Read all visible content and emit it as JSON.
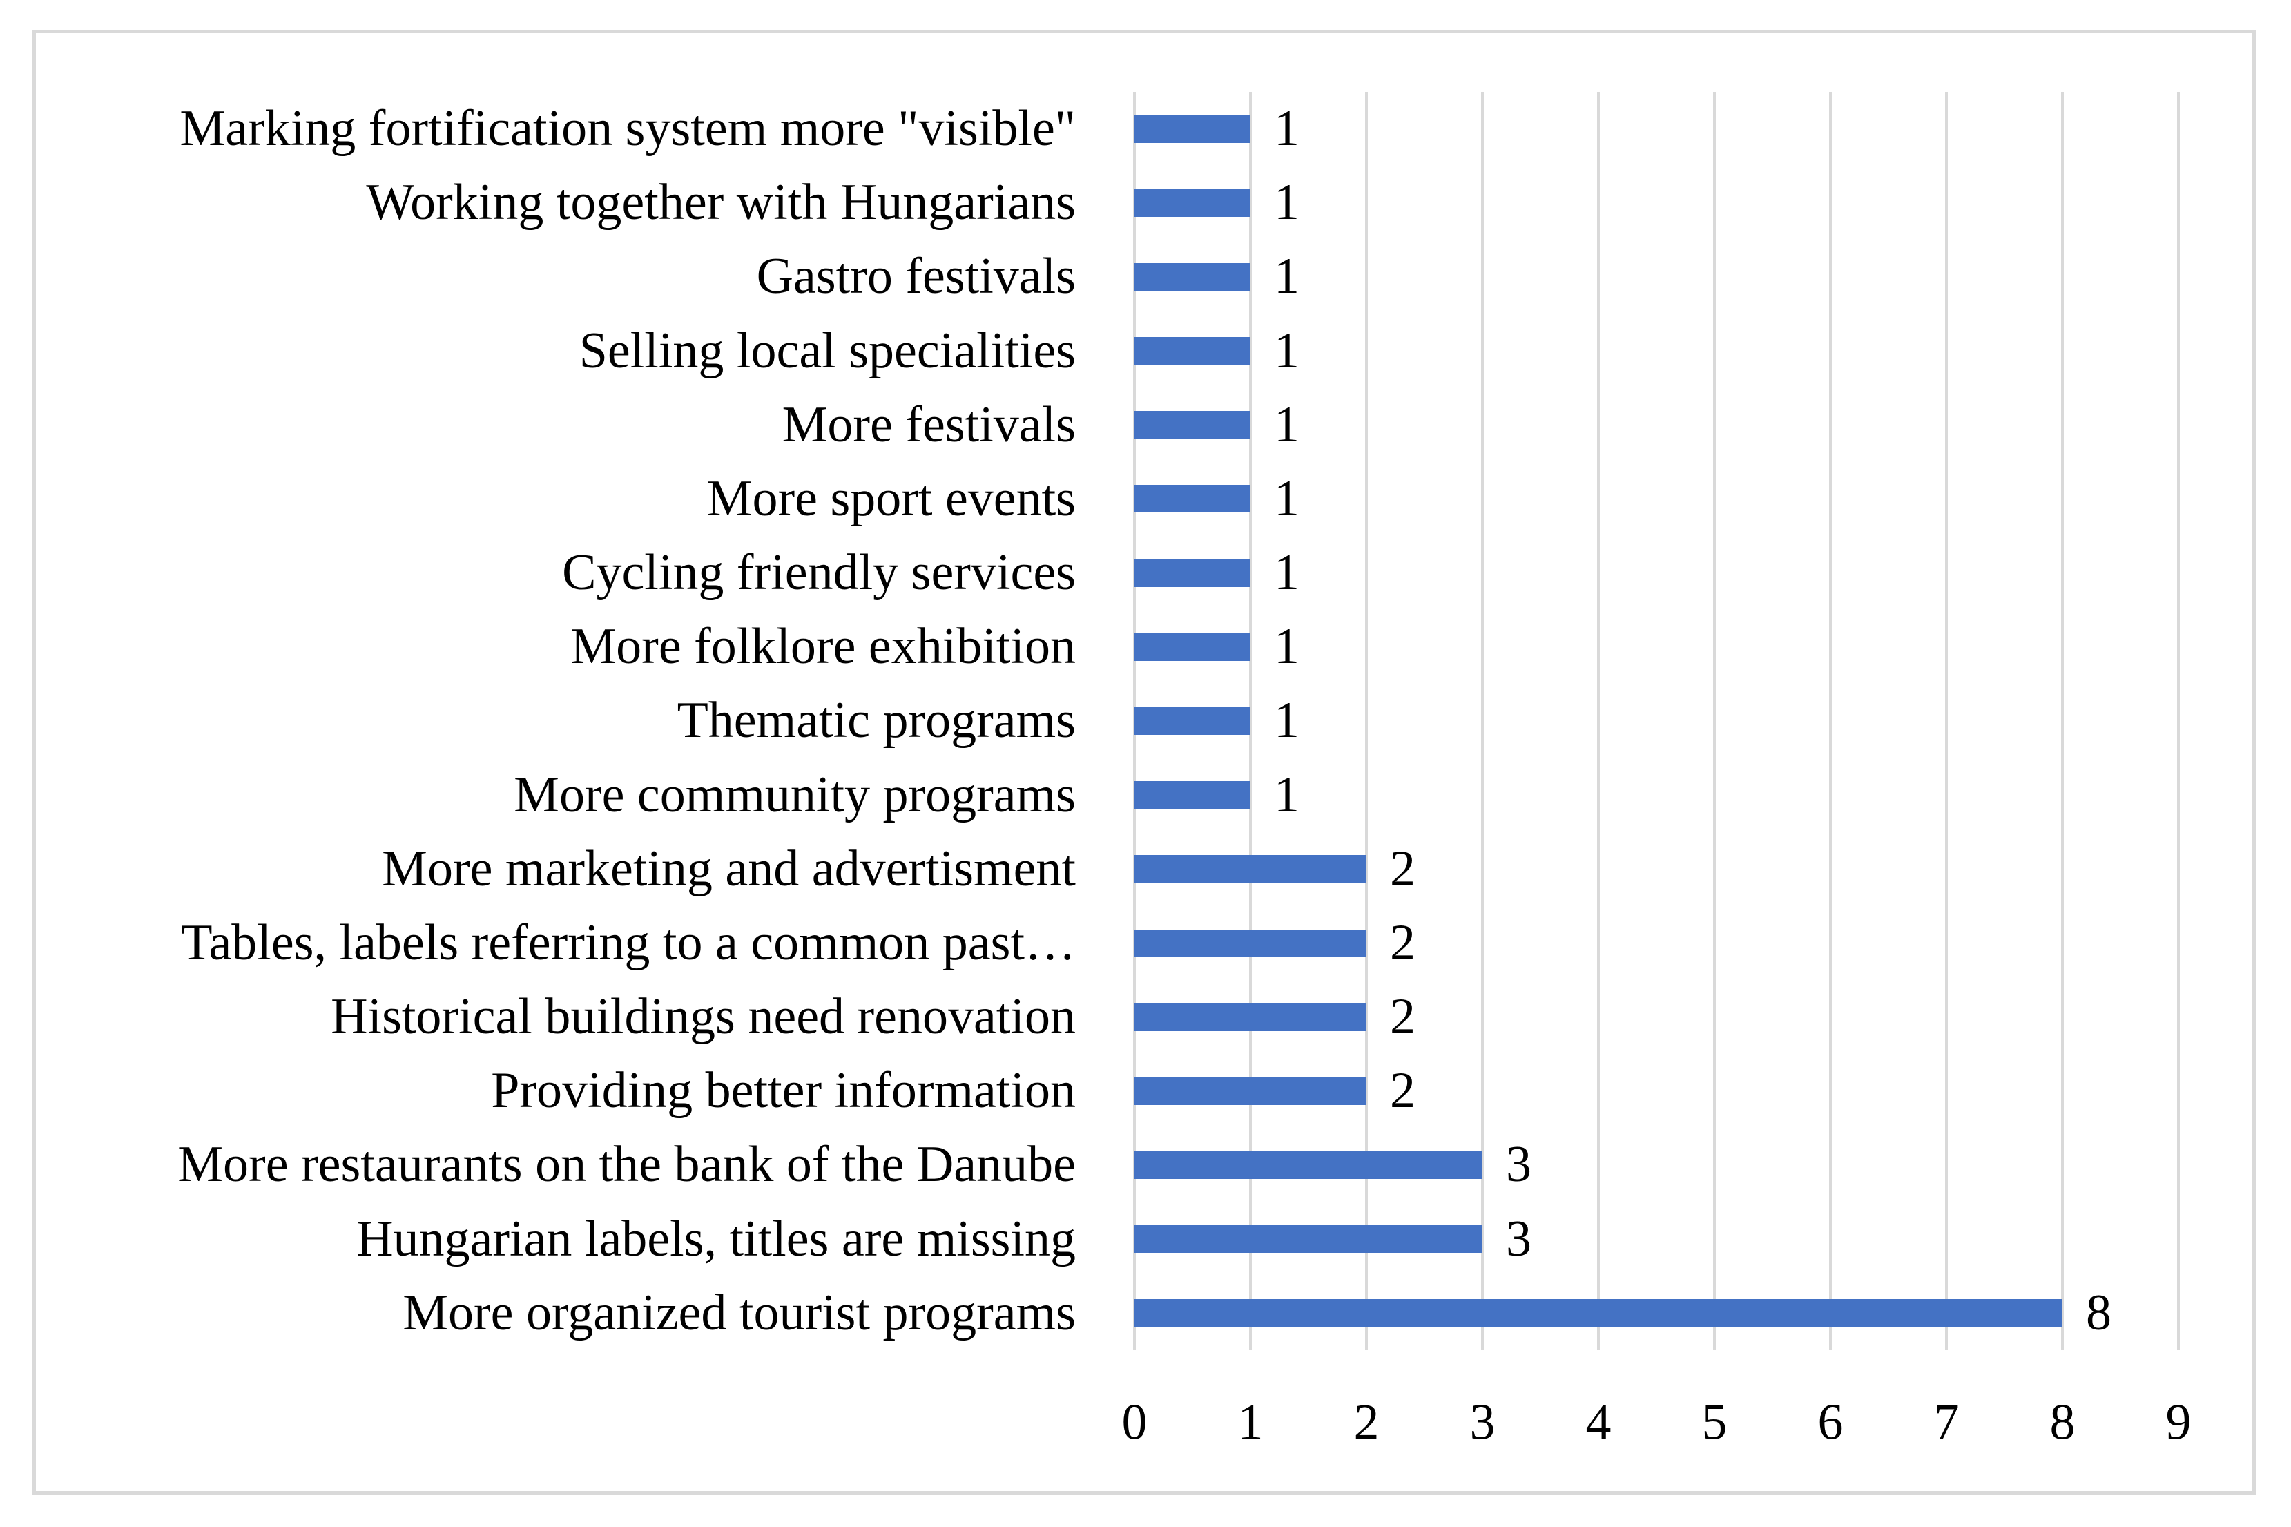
{
  "figure": {
    "background": "#FFFFFF",
    "border_color": "#D9D9D9"
  },
  "chart_data": {
    "type": "bar",
    "orientation": "horizontal",
    "title": "",
    "xlabel": "",
    "ylabel": "",
    "legend": "none",
    "grid": "vertical",
    "xlim": [
      0,
      9
    ],
    "xticks": [
      "0",
      "1",
      "2",
      "3",
      "4",
      "5",
      "6",
      "7",
      "8",
      "9"
    ],
    "bar_color": "#4472C4",
    "gridline_color": "#D9D9D9",
    "text_color": "#000000",
    "categories": [
      "Marking fortification system more \"visible\"",
      "Working together with Hungarians",
      "Gastro festivals",
      "Selling local specialities",
      "More festivals",
      "More sport events",
      "Cycling friendly services",
      "More folklore exhibition",
      "Thematic programs",
      "More community programs",
      "More marketing and advertisment",
      "Tables, labels referring to a common past…",
      "Historical buildings need renovation",
      "Providing better information",
      "More restaurants on the bank of the Danube",
      "Hungarian labels, titles are missing",
      "More organized tourist programs"
    ],
    "values": [
      1,
      1,
      1,
      1,
      1,
      1,
      1,
      1,
      1,
      1,
      2,
      2,
      2,
      2,
      3,
      3,
      8
    ],
    "data_labels": [
      "1",
      "1",
      "1",
      "1",
      "1",
      "1",
      "1",
      "1",
      "1",
      "1",
      "2",
      "2",
      "2",
      "2",
      "3",
      "3",
      "8"
    ]
  }
}
